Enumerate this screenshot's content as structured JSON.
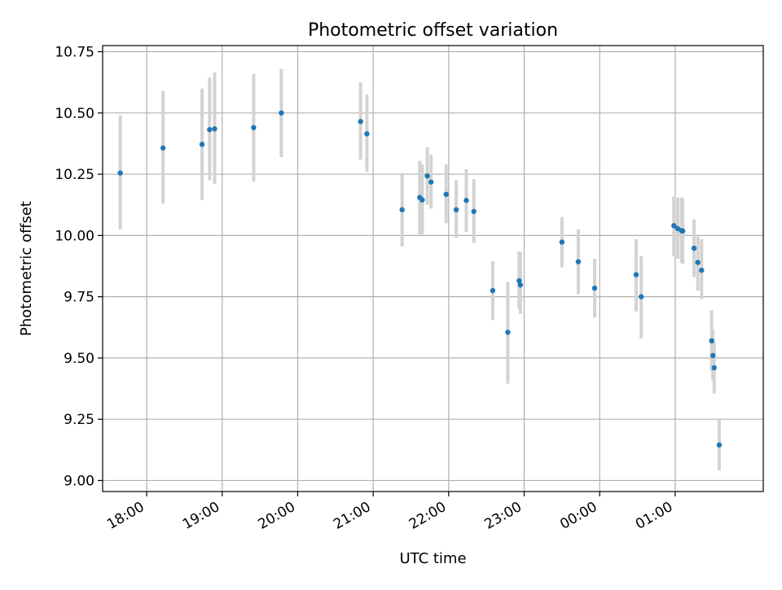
{
  "chart_data": {
    "type": "scatter",
    "title": "Photometric offset variation",
    "xlabel": "UTC time",
    "ylabel": "Photometric offset",
    "x_unit": "UTC time (HH:MM)",
    "xlim": [
      "17:25",
      "02:10"
    ],
    "ylim": [
      8.955,
      10.775
    ],
    "grid": true,
    "x_ticks": [
      "18:00",
      "19:00",
      "20:00",
      "21:00",
      "22:00",
      "23:00",
      "00:00",
      "01:00"
    ],
    "y_ticks": [
      "9.00",
      "9.25",
      "9.50",
      "9.75",
      "10.00",
      "10.25",
      "10.50",
      "10.75"
    ],
    "colors": {
      "points": "#1f77b4",
      "error_bars": "#d3d3d3",
      "grid": "#b0b0b0"
    },
    "points": [
      {
        "x": "17:39",
        "y": 10.255,
        "yerr_low": 10.025,
        "yerr_high": 10.49
      },
      {
        "x": "18:13",
        "y": 10.357,
        "yerr_low": 10.13,
        "yerr_high": 10.59
      },
      {
        "x": "18:44",
        "y": 10.372,
        "yerr_low": 10.145,
        "yerr_high": 10.6
      },
      {
        "x": "18:50",
        "y": 10.432,
        "yerr_low": 10.225,
        "yerr_high": 10.645
      },
      {
        "x": "18:54",
        "y": 10.435,
        "yerr_low": 10.21,
        "yerr_high": 10.665
      },
      {
        "x": "19:25",
        "y": 10.44,
        "yerr_low": 10.22,
        "yerr_high": 10.66
      },
      {
        "x": "19:47",
        "y": 10.5,
        "yerr_low": 10.32,
        "yerr_high": 10.68
      },
      {
        "x": "20:50",
        "y": 10.465,
        "yerr_low": 10.31,
        "yerr_high": 10.625
      },
      {
        "x": "20:55",
        "y": 10.415,
        "yerr_low": 10.26,
        "yerr_high": 10.575
      },
      {
        "x": "21:23",
        "y": 10.105,
        "yerr_low": 9.955,
        "yerr_high": 10.255
      },
      {
        "x": "21:37",
        "y": 10.155,
        "yerr_low": 10.005,
        "yerr_high": 10.305
      },
      {
        "x": "21:39",
        "y": 10.145,
        "yerr_low": 10.005,
        "yerr_high": 10.29
      },
      {
        "x": "21:43",
        "y": 10.243,
        "yerr_low": 10.125,
        "yerr_high": 10.36
      },
      {
        "x": "21:46",
        "y": 10.218,
        "yerr_low": 10.11,
        "yerr_high": 10.33
      },
      {
        "x": "21:58",
        "y": 10.168,
        "yerr_low": 10.05,
        "yerr_high": 10.29
      },
      {
        "x": "22:06",
        "y": 10.105,
        "yerr_low": 9.99,
        "yerr_high": 10.225
      },
      {
        "x": "22:14",
        "y": 10.143,
        "yerr_low": 10.015,
        "yerr_high": 10.27
      },
      {
        "x": "22:20",
        "y": 10.098,
        "yerr_low": 9.97,
        "yerr_high": 10.23
      },
      {
        "x": "22:35",
        "y": 9.775,
        "yerr_low": 9.655,
        "yerr_high": 9.895
      },
      {
        "x": "22:47",
        "y": 9.605,
        "yerr_low": 9.395,
        "yerr_high": 9.81
      },
      {
        "x": "22:56",
        "y": 9.815,
        "yerr_low": 9.7,
        "yerr_high": 9.935
      },
      {
        "x": "22:57",
        "y": 9.798,
        "yerr_low": 9.68,
        "yerr_high": 9.93
      },
      {
        "x": "23:30",
        "y": 9.973,
        "yerr_low": 9.87,
        "yerr_high": 10.075
      },
      {
        "x": "23:43",
        "y": 9.893,
        "yerr_low": 9.76,
        "yerr_high": 10.025
      },
      {
        "x": "23:56",
        "y": 9.785,
        "yerr_low": 9.665,
        "yerr_high": 9.905
      },
      {
        "x": "00:29",
        "y": 9.84,
        "yerr_low": 9.69,
        "yerr_high": 9.985
      },
      {
        "x": "00:33",
        "y": 9.75,
        "yerr_low": 9.58,
        "yerr_high": 9.915
      },
      {
        "x": "00:59",
        "y": 10.04,
        "yerr_low": 9.915,
        "yerr_high": 10.16
      },
      {
        "x": "01:02",
        "y": 10.028,
        "yerr_low": 9.905,
        "yerr_high": 10.155
      },
      {
        "x": "01:05",
        "y": 10.02,
        "yerr_low": 9.89,
        "yerr_high": 10.155
      },
      {
        "x": "01:06",
        "y": 10.018,
        "yerr_low": 9.885,
        "yerr_high": 10.15
      },
      {
        "x": "01:15",
        "y": 9.948,
        "yerr_low": 9.83,
        "yerr_high": 10.065
      },
      {
        "x": "01:18",
        "y": 9.89,
        "yerr_low": 9.775,
        "yerr_high": 10.005
      },
      {
        "x": "01:21",
        "y": 9.858,
        "yerr_low": 9.74,
        "yerr_high": 9.985
      },
      {
        "x": "01:29",
        "y": 9.57,
        "yerr_low": 9.445,
        "yerr_high": 9.695
      },
      {
        "x": "01:30",
        "y": 9.51,
        "yerr_low": 9.405,
        "yerr_high": 9.615
      },
      {
        "x": "01:31",
        "y": 9.46,
        "yerr_low": 9.355,
        "yerr_high": 9.565
      },
      {
        "x": "01:35",
        "y": 9.145,
        "yerr_low": 9.04,
        "yerr_high": 9.25
      }
    ]
  }
}
